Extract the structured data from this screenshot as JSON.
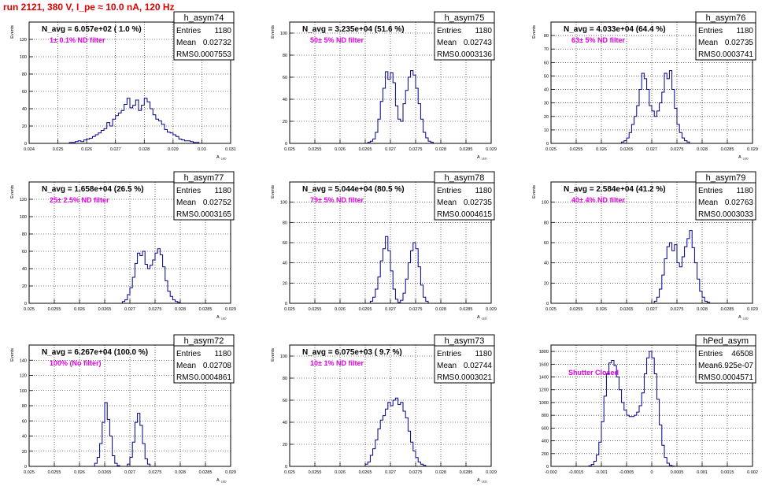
{
  "title": "run 2121,   380 V, I_pe ≈ 10.0 nA, 120 Hz",
  "colors": {
    "title": "#e00000",
    "annotation": "#e000e0",
    "histogram": "#00008b",
    "grid": "#000000"
  },
  "chart_data": [
    {
      "type": "histogram",
      "name": "h_asym74",
      "stats": {
        "entries": "1180",
        "mean": "0.02732",
        "rms": "0.0007553"
      },
      "header": "N_avg = 6.057e+02 ( 1.0 %)",
      "note": "1± 0.1% ND filter",
      "ylabel": "Events",
      "xlabel": "A",
      "xlabel_sub": "LED",
      "xlim": [
        0.024,
        0.031
      ],
      "ylim": [
        0,
        140
      ],
      "xticks": [
        0.024,
        0.025,
        0.026,
        0.027,
        0.028,
        0.029,
        0.03,
        0.031
      ],
      "xtick_labels": [
        "0.024",
        "0.025",
        "0.026",
        "0.027",
        "0.028",
        "0.029",
        "0.03",
        "0.031"
      ],
      "yticks": [
        0,
        20,
        40,
        60,
        80,
        100,
        120
      ],
      "bins": {
        "start": 0.0254,
        "width": 0.0001,
        "counts": [
          1,
          1,
          2,
          3,
          2,
          4,
          5,
          6,
          8,
          10,
          12,
          15,
          17,
          24,
          20,
          28,
          32,
          35,
          38,
          45,
          52,
          41,
          44,
          50,
          38,
          44,
          52,
          48,
          40,
          33,
          28,
          26,
          22,
          16,
          13,
          12,
          10,
          8,
          5,
          4,
          3,
          3,
          2,
          1,
          1
        ]
      }
    },
    {
      "type": "histogram",
      "name": "h_asym75",
      "stats": {
        "entries": "1180",
        "mean": "0.02743",
        "rms": "0.0003136"
      },
      "header": "N_avg = 3.235e+04 (51.6 %)",
      "note": "50± 5% ND filter",
      "ylabel": "Events",
      "xlabel": "A",
      "xlabel_sub": "LED",
      "xlim": [
        0.025,
        0.029
      ],
      "ylim": [
        0,
        110
      ],
      "xticks": [
        0.025,
        0.0255,
        0.026,
        0.0265,
        0.027,
        0.0275,
        0.028,
        0.0285,
        0.029
      ],
      "xtick_labels": [
        "0.025",
        "0.0255",
        "0.026",
        "0.0265",
        "0.027",
        "0.0275",
        "0.028",
        "0.0285",
        "0.029"
      ],
      "yticks": [
        0,
        20,
        40,
        60,
        80,
        100
      ],
      "bins": {
        "start": 0.02655,
        "width": 5e-05,
        "counts": [
          1,
          2,
          4,
          10,
          22,
          38,
          50,
          65,
          58,
          64,
          55,
          34,
          22,
          20,
          36,
          48,
          60,
          66,
          62,
          50,
          36,
          22,
          10,
          5,
          2,
          1
        ]
      }
    },
    {
      "type": "histogram",
      "name": "h_asym76",
      "stats": {
        "entries": "1180",
        "mean": "0.02735",
        "rms": "0.0003741"
      },
      "header": "N_avg = 4.033e+04 (64.4 %)",
      "note": "63± 5% ND filter",
      "ylabel": "Events",
      "xlabel": "A",
      "xlabel_sub": "LED",
      "xlim": [
        0.025,
        0.029
      ],
      "ylim": [
        0,
        90
      ],
      "xticks": [
        0.025,
        0.0255,
        0.026,
        0.0265,
        0.027,
        0.0275,
        0.028,
        0.0285,
        0.029
      ],
      "xtick_labels": [
        "0.025",
        "0.0255",
        "0.026",
        "0.0265",
        "0.027",
        "0.0275",
        "0.028",
        "0.0285",
        "0.029"
      ],
      "yticks": [
        0,
        10,
        20,
        30,
        40,
        50,
        60,
        70,
        80
      ],
      "bins": {
        "start": 0.0264,
        "width": 5e-05,
        "counts": [
          1,
          2,
          4,
          8,
          14,
          20,
          28,
          40,
          52,
          48,
          40,
          28,
          24,
          20,
          24,
          30,
          38,
          52,
          48,
          54,
          40,
          26,
          14,
          8,
          4,
          2,
          1
        ]
      }
    },
    {
      "type": "histogram",
      "name": "h_asym77",
      "stats": {
        "entries": "1180",
        "mean": "0.02752",
        "rms": "0.0003165"
      },
      "header": "N_avg = 1.658e+04 (26.5 %)",
      "note": "25± 2.5% ND filter",
      "ylabel": "Events",
      "xlabel": "A",
      "xlabel_sub": "LED",
      "xlim": [
        0.025,
        0.029
      ],
      "ylim": [
        0,
        140
      ],
      "xticks": [
        0.025,
        0.0255,
        0.026,
        0.0265,
        0.027,
        0.0275,
        0.028,
        0.0285,
        0.029
      ],
      "xtick_labels": [
        "0.025",
        "0.0255",
        "0.026",
        "0.0265",
        "0.027",
        "0.0275",
        "0.028",
        "0.0285",
        "0.029"
      ],
      "yticks": [
        0,
        20,
        40,
        60,
        80,
        100,
        120
      ],
      "bins": {
        "start": 0.02685,
        "width": 5e-05,
        "counts": [
          2,
          4,
          10,
          18,
          30,
          46,
          58,
          55,
          60,
          45,
          40,
          44,
          50,
          58,
          63,
          56,
          42,
          26,
          14,
          8,
          4,
          2,
          1
        ]
      }
    },
    {
      "type": "histogram",
      "name": "h_asym78",
      "stats": {
        "entries": "1180",
        "mean": "0.02735",
        "rms": "0.0004615"
      },
      "header": "N_avg = 5.044e+04 (80.5 %)",
      "note": "79± 5% ND filter",
      "ylabel": "Events",
      "xlabel": "A",
      "xlabel_sub": "LED",
      "xlim": [
        0.025,
        0.029
      ],
      "ylim": [
        0,
        120
      ],
      "xticks": [
        0.025,
        0.0255,
        0.026,
        0.0265,
        0.027,
        0.0275,
        0.028,
        0.0285,
        0.029
      ],
      "xtick_labels": [
        "0.025",
        "0.0255",
        "0.026",
        "0.0265",
        "0.027",
        "0.0275",
        "0.028",
        "0.0285",
        "0.029"
      ],
      "yticks": [
        0,
        20,
        40,
        60,
        80,
        100
      ],
      "bins": {
        "start": 0.0266,
        "width": 5e-05,
        "counts": [
          2,
          6,
          14,
          26,
          42,
          54,
          66,
          52,
          32,
          14,
          4,
          1,
          3,
          10,
          24,
          40,
          52,
          60,
          54,
          36,
          18,
          6,
          2
        ]
      }
    },
    {
      "type": "histogram",
      "name": "h_asym79",
      "stats": {
        "entries": "1180",
        "mean": "0.02763",
        "rms": "0.0003033"
      },
      "header": "N_avg = 2.584e+04 (41.2 %)",
      "note": "40± 4% ND filter",
      "ylabel": "Events",
      "xlabel": "A",
      "xlabel_sub": "LED",
      "xlim": [
        0.025,
        0.029
      ],
      "ylim": [
        0,
        120
      ],
      "xticks": [
        0.025,
        0.0255,
        0.026,
        0.0265,
        0.027,
        0.0275,
        0.028,
        0.0285,
        0.029
      ],
      "xtick_labels": [
        "0.025",
        "0.0255",
        "0.026",
        "0.0265",
        "0.027",
        "0.0275",
        "0.028",
        "0.0285",
        "0.029"
      ],
      "yticks": [
        0,
        20,
        40,
        60,
        80,
        100
      ],
      "bins": {
        "start": 0.02705,
        "width": 5e-05,
        "counts": [
          2,
          6,
          14,
          28,
          44,
          56,
          60,
          52,
          58,
          40,
          36,
          46,
          56,
          64,
          72,
          55,
          40,
          24,
          12,
          6,
          2,
          1
        ]
      }
    },
    {
      "type": "histogram",
      "name": "h_asym72",
      "stats": {
        "entries": "1180",
        "mean": "0.02708",
        "rms": "0.0004861"
      },
      "header": "N_avg = 6.267e+04 (100.0 %)",
      "note": "100% (No filter)",
      "ylabel": "Events",
      "xlabel": "A",
      "xlabel_sub": "LED",
      "xlim": [
        0.025,
        0.029
      ],
      "ylim": [
        0,
        160
      ],
      "xticks": [
        0.025,
        0.0255,
        0.026,
        0.0265,
        0.027,
        0.0275,
        0.028,
        0.0285,
        0.029
      ],
      "xtick_labels": [
        "0.025",
        "0.0255",
        "0.026",
        "0.0265",
        "0.027",
        "0.0275",
        "0.028",
        "0.0285",
        "0.029"
      ],
      "yticks": [
        0,
        20,
        40,
        60,
        80,
        100,
        120,
        140
      ],
      "bins": {
        "start": 0.0263,
        "width": 5e-05,
        "counts": [
          4,
          12,
          30,
          58,
          84,
          62,
          40,
          14,
          4,
          1,
          0,
          0,
          0,
          3,
          12,
          32,
          58,
          70,
          54,
          30,
          10,
          3
        ]
      }
    },
    {
      "type": "histogram",
      "name": "h_asym73",
      "stats": {
        "entries": "1180",
        "mean": "0.02744",
        "rms": "0.0003021"
      },
      "header": "N_avg = 6.075e+03 ( 9.7 %)",
      "note": "10± 1% ND filter",
      "ylabel": "Events",
      "xlabel": "A",
      "xlabel_sub": "LED",
      "xlim": [
        0.025,
        0.029
      ],
      "ylim": [
        0,
        110
      ],
      "xticks": [
        0.025,
        0.0255,
        0.026,
        0.0265,
        0.027,
        0.0275,
        0.028,
        0.0285,
        0.029
      ],
      "xtick_labels": [
        "0.025",
        "0.0255",
        "0.026",
        "0.0265",
        "0.027",
        "0.0275",
        "0.028",
        "0.0285",
        "0.029"
      ],
      "yticks": [
        0,
        20,
        40,
        60,
        80,
        100
      ],
      "bins": {
        "start": 0.0265,
        "width": 5e-05,
        "counts": [
          2,
          4,
          10,
          16,
          24,
          34,
          42,
          46,
          52,
          58,
          55,
          60,
          62,
          56,
          58,
          50,
          44,
          32,
          22,
          14,
          8,
          4,
          2,
          1
        ]
      }
    },
    {
      "type": "histogram",
      "name": "hPed_asym",
      "stats": {
        "entries": "46508",
        "mean": "-6.925e-07",
        "rms": "0.0004571"
      },
      "header": "",
      "note": "Shutter Closed",
      "ylabel": "",
      "xlabel": "",
      "xlabel_sub": "",
      "xlim": [
        -0.002,
        0.002
      ],
      "ylim": [
        0,
        1900
      ],
      "xticks": [
        -0.002,
        -0.0015,
        -0.001,
        -0.0005,
        0,
        0.0005,
        0.001,
        0.0015,
        0.002
      ],
      "xtick_labels": [
        "-0.002",
        "-0.0015",
        "-0.001",
        "-0.0005",
        "0",
        "0.0005",
        "0.001",
        "0.0015",
        "0.002"
      ],
      "yticks": [
        0,
        200,
        400,
        600,
        800,
        1000,
        1200,
        1400,
        1600,
        1800
      ],
      "bins": {
        "start": -0.00125,
        "width": 5e-05,
        "counts": [
          10,
          30,
          80,
          180,
          380,
          700,
          1100,
          1450,
          1620,
          1660,
          1580,
          1400,
          1200,
          1000,
          880,
          800,
          780,
          780,
          800,
          850,
          950,
          1150,
          1450,
          1700,
          1800,
          1700,
          1450,
          1050,
          650,
          330,
          140,
          50,
          15,
          5
        ]
      }
    }
  ]
}
